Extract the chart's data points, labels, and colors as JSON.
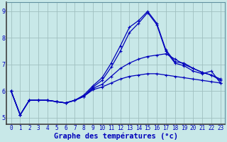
{
  "xlabel": "Graphe des températures (°c)",
  "background_color": "#c8e8e8",
  "grid_color": "#a0c0c0",
  "line_color": "#0000bb",
  "hours": [
    0,
    1,
    2,
    3,
    4,
    5,
    6,
    7,
    8,
    9,
    10,
    11,
    12,
    13,
    14,
    15,
    16,
    17,
    18,
    19,
    20,
    21,
    22,
    23
  ],
  "line1": [
    6.0,
    5.1,
    5.65,
    5.65,
    5.65,
    5.6,
    5.55,
    5.65,
    5.8,
    6.15,
    6.4,
    6.9,
    7.5,
    8.2,
    8.55,
    8.95,
    8.5,
    7.5,
    7.05,
    6.95,
    6.75,
    6.65,
    6.75,
    6.3
  ],
  "line2": [
    6.0,
    5.1,
    5.65,
    5.65,
    5.65,
    5.6,
    5.55,
    5.65,
    5.85,
    6.2,
    6.5,
    7.05,
    7.7,
    8.4,
    8.65,
    9.0,
    8.55,
    7.55,
    7.1,
    7.05,
    6.85,
    6.7,
    6.6,
    6.4
  ],
  "line3": [
    6.0,
    5.1,
    5.65,
    5.65,
    5.65,
    5.6,
    5.55,
    5.65,
    5.8,
    6.1,
    6.25,
    6.55,
    6.85,
    7.05,
    7.2,
    7.3,
    7.35,
    7.4,
    7.2,
    7.0,
    6.85,
    6.7,
    6.6,
    6.45
  ],
  "line4": [
    6.0,
    5.1,
    5.65,
    5.65,
    5.65,
    5.6,
    5.55,
    5.65,
    5.8,
    6.05,
    6.15,
    6.3,
    6.45,
    6.55,
    6.6,
    6.65,
    6.65,
    6.6,
    6.55,
    6.5,
    6.45,
    6.4,
    6.35,
    6.3
  ],
  "ylim": [
    4.75,
    9.35
  ],
  "yticks": [
    5,
    6,
    7,
    8,
    9
  ],
  "xticks": [
    0,
    1,
    2,
    3,
    4,
    5,
    6,
    7,
    8,
    9,
    10,
    11,
    12,
    13,
    14,
    15,
    16,
    17,
    18,
    19,
    20,
    21,
    22,
    23
  ],
  "tick_fontsize": 5.5,
  "xlabel_fontsize": 7.5
}
